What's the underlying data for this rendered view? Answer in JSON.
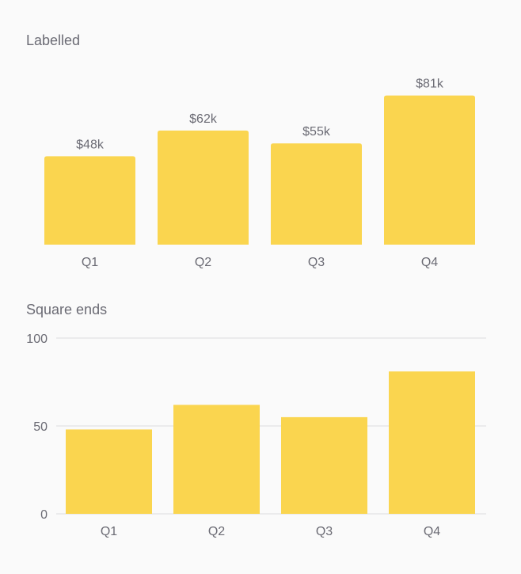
{
  "colors": {
    "bar": "#fad54f",
    "text": "#6b6b74",
    "grid": "#dcdcdf",
    "background": "#fafafa"
  },
  "chart_data": [
    {
      "type": "bar",
      "title": "Labelled",
      "categories": [
        "Q1",
        "Q2",
        "Q3",
        "Q4"
      ],
      "values": [
        48,
        62,
        55,
        81
      ],
      "data_labels": [
        "$48k",
        "$62k",
        "$55k",
        "$81k"
      ],
      "rounded_ends": true,
      "y_axis_visible": false,
      "grid": false,
      "ylim": [
        0,
        100
      ]
    },
    {
      "type": "bar",
      "title": "Square ends",
      "categories": [
        "Q1",
        "Q2",
        "Q3",
        "Q4"
      ],
      "values": [
        48,
        62,
        55,
        81
      ],
      "rounded_ends": false,
      "y_axis_visible": true,
      "yticks": [
        0,
        50,
        100
      ],
      "grid": true,
      "ylim": [
        0,
        100
      ]
    }
  ]
}
